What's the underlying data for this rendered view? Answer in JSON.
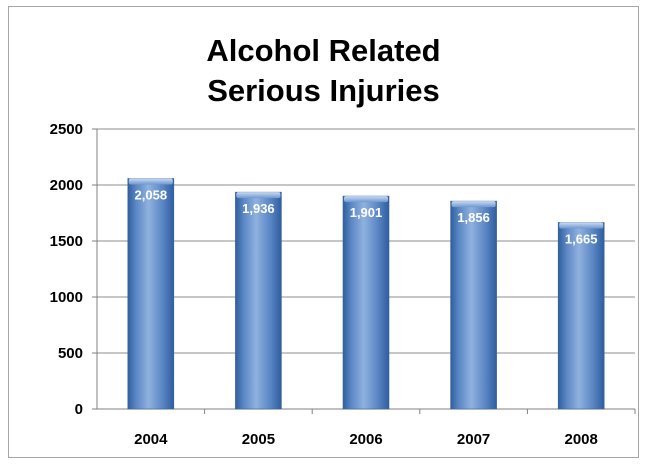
{
  "chart_data": {
    "type": "bar",
    "title_lines": [
      "Alcohol Related",
      "Serious Injuries"
    ],
    "categories": [
      "2004",
      "2005",
      "2006",
      "2007",
      "2008"
    ],
    "values": [
      2058,
      1936,
      1901,
      1856,
      1665
    ],
    "value_labels": [
      "2,058",
      "1,936",
      "1,901",
      "1,856",
      "1,665"
    ],
    "xlabel": "",
    "ylabel": "",
    "ylim": [
      0,
      2500
    ],
    "yticks": [
      0,
      500,
      1000,
      1500,
      2000,
      2500
    ],
    "grid": true,
    "legend": "none",
    "bar_color": "#5b87c5"
  }
}
